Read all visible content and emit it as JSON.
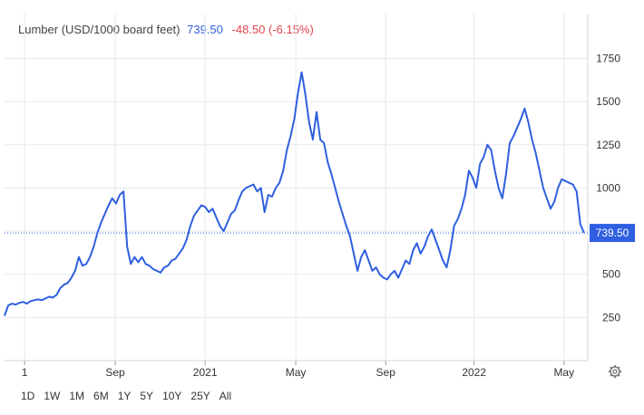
{
  "title": {
    "name": "Lumber (USD/1000 board feet)",
    "last": "739.50",
    "change": "-48.50 (-6.15%)"
  },
  "range_buttons": [
    "1D",
    "1W",
    "1M",
    "6M",
    "1Y",
    "5Y",
    "10Y",
    "25Y",
    "All"
  ],
  "icons": {
    "settings": "gear-icon"
  },
  "colors": {
    "line": "#2f5fe0",
    "change_negative": "#e0454e",
    "last_label_bg": "#2f5fe0",
    "grid": "#e6e9ef"
  },
  "chart_data": {
    "type": "line",
    "title": "Lumber (USD/1000 board feet)",
    "x_ticks": [
      {
        "label": "1",
        "t": 5.4
      },
      {
        "label": "Sep",
        "t": 29.8
      },
      {
        "label": "2021",
        "t": 54.0
      },
      {
        "label": "May",
        "t": 78.4
      },
      {
        "label": "Sep",
        "t": 102.6
      },
      {
        "label": "2022",
        "t": 126.4
      },
      {
        "label": "May",
        "t": 150.6
      }
    ],
    "xlim": [
      0,
      157
    ],
    "ylim": [
      0,
      1800
    ],
    "y_ticks": [
      250,
      500,
      750,
      1000,
      1250,
      1500,
      1750
    ],
    "y_tick_labels": [
      "250",
      "500",
      "750",
      "1000",
      "1250",
      "1500",
      "1750"
    ],
    "grid": true,
    "last_value": 739.5,
    "last_value_label": "739.50",
    "series": [
      {
        "name": "Lumber",
        "points": [
          [
            0,
            260
          ],
          [
            1,
            320
          ],
          [
            2,
            330
          ],
          [
            3,
            325
          ],
          [
            4,
            335
          ],
          [
            5,
            340
          ],
          [
            6,
            330
          ],
          [
            7,
            345
          ],
          [
            8,
            350
          ],
          [
            9,
            355
          ],
          [
            10,
            350
          ],
          [
            11,
            360
          ],
          [
            12,
            370
          ],
          [
            13,
            365
          ],
          [
            14,
            380
          ],
          [
            15,
            420
          ],
          [
            16,
            440
          ],
          [
            17,
            450
          ],
          [
            18,
            480
          ],
          [
            19,
            520
          ],
          [
            20,
            600
          ],
          [
            21,
            550
          ],
          [
            22,
            560
          ],
          [
            23,
            600
          ],
          [
            24,
            660
          ],
          [
            25,
            740
          ],
          [
            26,
            800
          ],
          [
            27,
            850
          ],
          [
            28,
            900
          ],
          [
            29,
            940
          ],
          [
            30,
            910
          ],
          [
            31,
            960
          ],
          [
            32,
            980
          ],
          [
            33,
            660
          ],
          [
            34,
            560
          ],
          [
            35,
            600
          ],
          [
            36,
            570
          ],
          [
            37,
            600
          ],
          [
            38,
            560
          ],
          [
            39,
            550
          ],
          [
            40,
            530
          ],
          [
            41,
            520
          ],
          [
            42,
            510
          ],
          [
            43,
            540
          ],
          [
            44,
            550
          ],
          [
            45,
            580
          ],
          [
            46,
            590
          ],
          [
            47,
            620
          ],
          [
            48,
            650
          ],
          [
            49,
            700
          ],
          [
            50,
            780
          ],
          [
            51,
            840
          ],
          [
            52,
            870
          ],
          [
            53,
            900
          ],
          [
            54,
            890
          ],
          [
            55,
            860
          ],
          [
            56,
            880
          ],
          [
            57,
            830
          ],
          [
            58,
            780
          ],
          [
            59,
            750
          ],
          [
            60,
            800
          ],
          [
            61,
            850
          ],
          [
            62,
            870
          ],
          [
            63,
            930
          ],
          [
            64,
            980
          ],
          [
            65,
            1000
          ],
          [
            66,
            1010
          ],
          [
            67,
            1020
          ],
          [
            68,
            980
          ],
          [
            69,
            1000
          ],
          [
            70,
            860
          ],
          [
            71,
            960
          ],
          [
            72,
            950
          ],
          [
            73,
            1000
          ],
          [
            74,
            1030
          ],
          [
            75,
            1100
          ],
          [
            76,
            1220
          ],
          [
            77,
            1300
          ],
          [
            78,
            1400
          ],
          [
            79,
            1550
          ],
          [
            80,
            1670
          ],
          [
            81,
            1540
          ],
          [
            82,
            1380
          ],
          [
            83,
            1280
          ],
          [
            84,
            1440
          ],
          [
            85,
            1280
          ],
          [
            86,
            1260
          ],
          [
            87,
            1150
          ],
          [
            88,
            1080
          ],
          [
            89,
            1000
          ],
          [
            90,
            920
          ],
          [
            91,
            850
          ],
          [
            92,
            780
          ],
          [
            93,
            720
          ],
          [
            94,
            620
          ],
          [
            95,
            520
          ],
          [
            96,
            600
          ],
          [
            97,
            640
          ],
          [
            98,
            580
          ],
          [
            99,
            520
          ],
          [
            100,
            540
          ],
          [
            101,
            500
          ],
          [
            102,
            480
          ],
          [
            103,
            470
          ],
          [
            104,
            500
          ],
          [
            105,
            520
          ],
          [
            106,
            480
          ],
          [
            107,
            530
          ],
          [
            108,
            580
          ],
          [
            109,
            560
          ],
          [
            110,
            640
          ],
          [
            111,
            680
          ],
          [
            112,
            620
          ],
          [
            113,
            660
          ],
          [
            114,
            720
          ],
          [
            115,
            760
          ],
          [
            116,
            700
          ],
          [
            117,
            640
          ],
          [
            118,
            580
          ],
          [
            119,
            540
          ],
          [
            120,
            640
          ],
          [
            121,
            780
          ],
          [
            122,
            820
          ],
          [
            123,
            880
          ],
          [
            124,
            960
          ],
          [
            125,
            1100
          ],
          [
            126,
            1060
          ],
          [
            127,
            1000
          ],
          [
            128,
            1140
          ],
          [
            129,
            1180
          ],
          [
            130,
            1250
          ],
          [
            131,
            1220
          ],
          [
            132,
            1100
          ],
          [
            133,
            1000
          ],
          [
            134,
            940
          ],
          [
            135,
            1080
          ],
          [
            136,
            1260
          ],
          [
            137,
            1300
          ],
          [
            138,
            1350
          ],
          [
            139,
            1400
          ],
          [
            140,
            1460
          ],
          [
            141,
            1380
          ],
          [
            142,
            1280
          ],
          [
            143,
            1200
          ],
          [
            144,
            1100
          ],
          [
            145,
            1000
          ],
          [
            146,
            940
          ],
          [
            147,
            880
          ],
          [
            148,
            920
          ],
          [
            149,
            1000
          ],
          [
            150,
            1050
          ],
          [
            151,
            1040
          ],
          [
            152,
            1030
          ],
          [
            153,
            1020
          ],
          [
            154,
            980
          ],
          [
            155,
            790
          ],
          [
            156,
            739.5
          ]
        ]
      }
    ]
  }
}
